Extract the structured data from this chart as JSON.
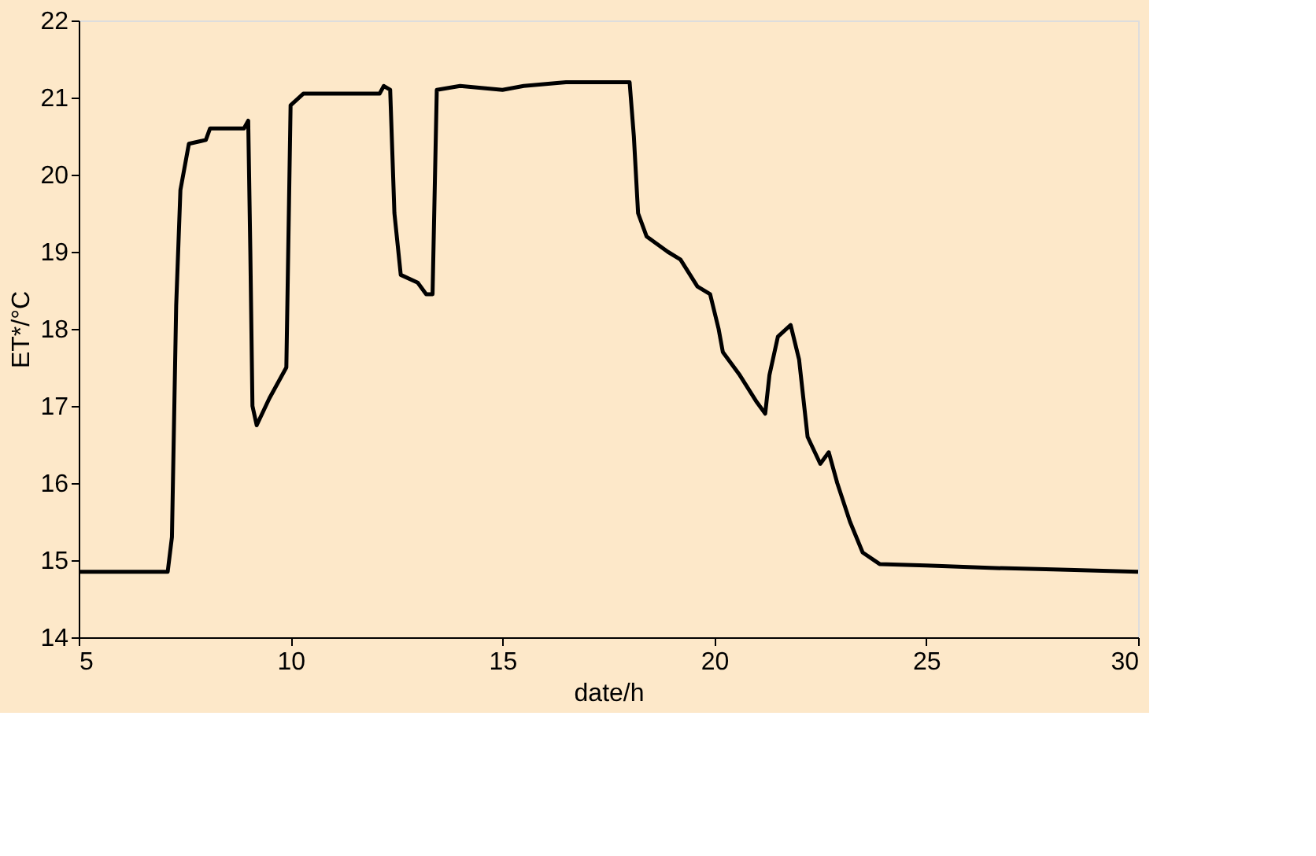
{
  "chart_data": {
    "type": "line",
    "xlabel": "date/h",
    "ylabel": "ET*/°C",
    "xlim": [
      5,
      30
    ],
    "ylim": [
      14,
      22
    ],
    "xticks": [
      5,
      10,
      15,
      20,
      25,
      30
    ],
    "yticks": [
      14,
      15,
      16,
      17,
      18,
      19,
      20,
      21,
      22
    ],
    "grid": false,
    "marker": "none",
    "line_style": "solid",
    "series": [
      {
        "color": "#000000",
        "x": [
          5,
          7.1,
          7.2,
          7.3,
          7.4,
          7.6,
          8.0,
          8.1,
          8.9,
          9.0,
          9.05,
          9.1,
          9.2,
          9.5,
          9.9,
          10.0,
          10.3,
          11.0,
          12.1,
          12.2,
          12.35,
          12.45,
          12.6,
          13.0,
          13.2,
          13.35,
          13.45,
          14,
          15,
          15.5,
          16.5,
          18.0,
          18.1,
          18.2,
          18.4,
          18.9,
          19.2,
          19.6,
          19.9,
          20.1,
          20.2,
          20.6,
          21.0,
          21.2,
          21.3,
          21.5,
          21.8,
          22.0,
          22.2,
          22.5,
          22.7,
          22.9,
          23.2,
          23.5,
          23.9,
          25,
          26.5,
          28,
          30
        ],
        "values": [
          14.85,
          14.85,
          15.3,
          18.3,
          19.8,
          20.4,
          20.45,
          20.6,
          20.6,
          20.7,
          19.0,
          17.0,
          16.75,
          17.1,
          17.5,
          20.9,
          21.05,
          21.05,
          21.05,
          21.15,
          21.1,
          19.5,
          18.7,
          18.6,
          18.45,
          18.45,
          21.1,
          21.15,
          21.1,
          21.15,
          21.2,
          21.2,
          20.5,
          19.5,
          19.2,
          19.0,
          18.9,
          18.55,
          18.45,
          18.0,
          17.7,
          17.4,
          17.05,
          16.9,
          17.4,
          17.9,
          18.05,
          17.6,
          16.6,
          16.25,
          16.4,
          16.0,
          15.5,
          15.1,
          14.95,
          14.93,
          14.9,
          14.88,
          14.85
        ]
      }
    ]
  }
}
